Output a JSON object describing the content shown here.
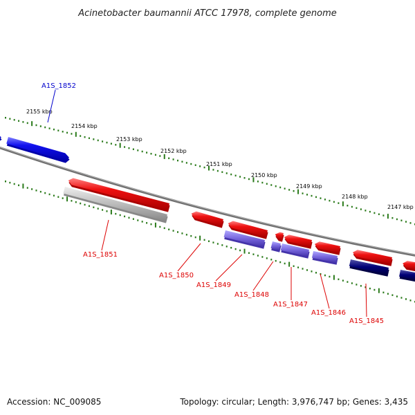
{
  "title": "Acinetobacter baumannii ATCC 17978, complete genome",
  "footer": {
    "accession": "Accession: NC_009085",
    "summary": "Topology: circular; Length: 3,976,747 bp; Genes: 3,435"
  },
  "ticks": [
    {
      "label": "2155 kbp"
    },
    {
      "label": "2154 kbp"
    },
    {
      "label": "2153 kbp"
    },
    {
      "label": "2152 kbp"
    },
    {
      "label": "2151 kbp"
    },
    {
      "label": "2150 kbp"
    },
    {
      "label": "2149 kbp"
    },
    {
      "label": "2148 kbp"
    },
    {
      "label": "2147 kbp"
    }
  ],
  "genes": [
    {
      "label": "A1S_1852",
      "strand": "forward",
      "color": "#0000cc"
    },
    {
      "label": "A1S_1851",
      "strand": "reverse",
      "color": "#dd0000"
    },
    {
      "label": "A1S_1850",
      "strand": "reverse",
      "color": "#dd0000"
    },
    {
      "label": "A1S_1849",
      "strand": "reverse",
      "color": "#dd0000"
    },
    {
      "label": "A1S_1848",
      "strand": "reverse",
      "color": "#dd0000"
    },
    {
      "label": "A1S_1847",
      "strand": "reverse",
      "color": "#dd0000"
    },
    {
      "label": "A1S_1846",
      "strand": "reverse",
      "color": "#dd0000"
    },
    {
      "label": "A1S_1845",
      "strand": "reverse",
      "color": "#dd0000"
    }
  ],
  "colors": {
    "forward_cds": "#0000ee",
    "reverse_cds": "#ee0000",
    "feature_gray": "#bbbbbb",
    "feature_purple": "#7766dd",
    "feature_navy": "#000077",
    "tick": "#2a7a1a",
    "backbone": "#808080"
  }
}
